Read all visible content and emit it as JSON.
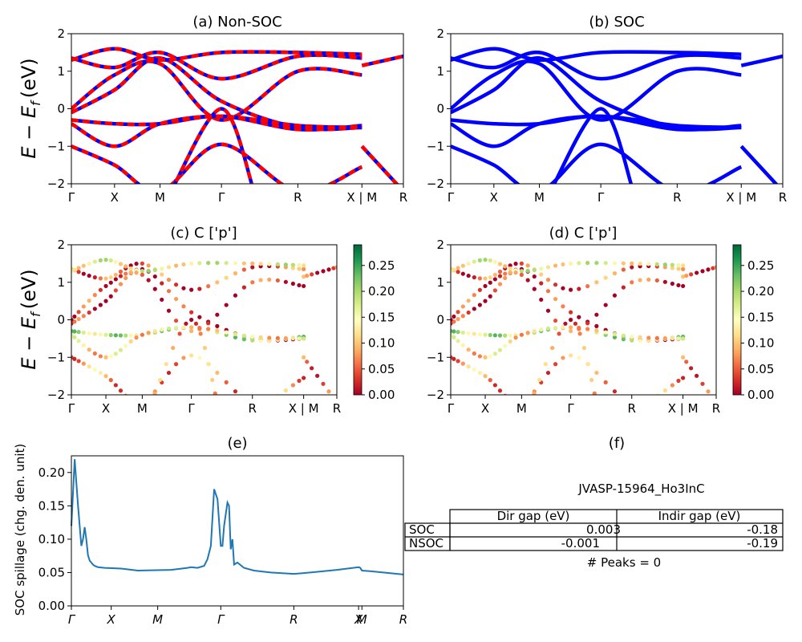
{
  "figure": {
    "material": "JVASP-15964_Ho3InC",
    "band_ylabel": "E − E",
    "band_ylabel_sub": "f",
    "band_ylabel_unit": "(eV)"
  },
  "chart_data": [
    {
      "id": "a",
      "type": "line",
      "title": "(a) Non-SOC",
      "ylim": [
        -2,
        2
      ],
      "yticks": [
        "−2",
        "−1",
        "0",
        "1",
        "2"
      ],
      "kpath_labels": [
        "Γ",
        "X",
        "M",
        "Γ",
        "R",
        "X | M",
        "R"
      ],
      "kpath_pos": [
        0,
        0.13,
        0.267,
        0.452,
        0.682,
        0.875,
        1.0
      ],
      "series_colors": [
        "#0000ff",
        "#ff0000"
      ],
      "bands": [
        [
          [
            0,
            -0.1
          ],
          [
            0.13,
            0.5
          ],
          [
            0.267,
            1.35
          ],
          [
            0.452,
            0.2
          ],
          [
            0.682,
            -0.5
          ],
          [
            0.875,
            -0.5
          ]
        ],
        [
          [
            0,
            -0.3
          ],
          [
            0.13,
            -0.4
          ],
          [
            0.267,
            -0.4
          ],
          [
            0.452,
            -0.2
          ],
          [
            0.682,
            -0.55
          ],
          [
            0.875,
            -0.45
          ]
        ],
        [
          [
            0,
            1.35
          ],
          [
            0.13,
            1.1
          ],
          [
            0.267,
            1.5
          ],
          [
            0.452,
            0.8
          ],
          [
            0.682,
            1.4
          ],
          [
            0.875,
            1.35
          ]
        ],
        [
          [
            0,
            1.3
          ],
          [
            0.13,
            1.6
          ],
          [
            0.267,
            1.3
          ],
          [
            0.452,
            1.5
          ],
          [
            0.682,
            1.5
          ],
          [
            0.875,
            1.45
          ]
        ],
        [
          [
            0,
            -1.0
          ],
          [
            0.13,
            -1.5
          ],
          [
            0.267,
            -2.2
          ],
          [
            0.452,
            -0.95
          ],
          [
            0.682,
            -2.2
          ],
          [
            0.875,
            -1.55
          ]
        ],
        [
          [
            0,
            0.0
          ],
          [
            0.13,
            0.9
          ],
          [
            0.267,
            1.2
          ],
          [
            0.452,
            -0.3
          ],
          [
            0.682,
            1.0
          ],
          [
            0.875,
            0.9
          ]
        ],
        [
          [
            0.3,
            -2.2
          ],
          [
            0.452,
            0.0
          ],
          [
            0.55,
            -2.2
          ]
        ],
        [
          [
            0,
            -0.4
          ],
          [
            0.13,
            -1.0
          ],
          [
            0.267,
            -0.4
          ],
          [
            0.452,
            -0.2
          ],
          [
            0.682,
            -0.45
          ],
          [
            0.875,
            -0.5
          ]
        ],
        [
          [
            0.875,
            1.15
          ],
          [
            1.0,
            1.4
          ]
        ],
        [
          [
            0.875,
            -1.0
          ],
          [
            1.0,
            -2.2
          ]
        ]
      ]
    },
    {
      "id": "b",
      "type": "line",
      "title": "(b) SOC",
      "ylim": [
        -2,
        2
      ],
      "yticks": [
        "−2",
        "−1",
        "0",
        "1",
        "2"
      ],
      "kpath_labels": [
        "Γ",
        "X",
        "M",
        "Γ",
        "R",
        "X | M",
        "R"
      ],
      "kpath_pos": [
        0,
        0.13,
        0.267,
        0.452,
        0.682,
        0.875,
        1.0
      ],
      "series_colors": [
        "#0000ff"
      ],
      "bands": [
        [
          [
            0,
            -0.1
          ],
          [
            0.13,
            0.5
          ],
          [
            0.267,
            1.35
          ],
          [
            0.452,
            0.2
          ],
          [
            0.682,
            -0.5
          ],
          [
            0.875,
            -0.5
          ]
        ],
        [
          [
            0,
            -0.3
          ],
          [
            0.13,
            -0.4
          ],
          [
            0.267,
            -0.4
          ],
          [
            0.452,
            -0.2
          ],
          [
            0.682,
            -0.55
          ],
          [
            0.875,
            -0.45
          ]
        ],
        [
          [
            0,
            1.35
          ],
          [
            0.13,
            1.1
          ],
          [
            0.267,
            1.5
          ],
          [
            0.452,
            0.8
          ],
          [
            0.682,
            1.4
          ],
          [
            0.875,
            1.35
          ]
        ],
        [
          [
            0,
            1.3
          ],
          [
            0.13,
            1.6
          ],
          [
            0.267,
            1.3
          ],
          [
            0.452,
            1.5
          ],
          [
            0.682,
            1.5
          ],
          [
            0.875,
            1.45
          ]
        ],
        [
          [
            0,
            -1.0
          ],
          [
            0.13,
            -1.5
          ],
          [
            0.267,
            -2.2
          ],
          [
            0.452,
            -0.95
          ],
          [
            0.682,
            -2.2
          ],
          [
            0.875,
            -1.55
          ]
        ],
        [
          [
            0,
            0.0
          ],
          [
            0.13,
            0.9
          ],
          [
            0.267,
            1.2
          ],
          [
            0.452,
            -0.3
          ],
          [
            0.682,
            1.0
          ],
          [
            0.875,
            0.9
          ]
        ],
        [
          [
            0.3,
            -2.2
          ],
          [
            0.452,
            0.0
          ],
          [
            0.55,
            -2.2
          ]
        ],
        [
          [
            0,
            -0.4
          ],
          [
            0.13,
            -1.0
          ],
          [
            0.267,
            -0.4
          ],
          [
            0.452,
            -0.2
          ],
          [
            0.682,
            -0.45
          ],
          [
            0.875,
            -0.5
          ]
        ],
        [
          [
            0.875,
            1.15
          ],
          [
            1.0,
            1.4
          ]
        ],
        [
          [
            0.875,
            -1.0
          ],
          [
            1.0,
            -2.2
          ]
        ]
      ]
    },
    {
      "id": "c",
      "type": "scatter",
      "title": "(c)  C ['p']",
      "ylim": [
        -2,
        2
      ],
      "yticks": [
        "−2",
        "−1",
        "0",
        "1",
        "2"
      ],
      "kpath_labels": [
        "Γ",
        "X",
        "M",
        "Γ",
        "R",
        "X | M",
        "R"
      ],
      "kpath_pos": [
        0,
        0.13,
        0.267,
        0.452,
        0.682,
        0.875,
        1.0
      ],
      "colorbar": {
        "min": 0.0,
        "max": 0.29,
        "ticks": [
          "0.00",
          "0.05",
          "0.10",
          "0.15",
          "0.20",
          "0.25"
        ],
        "tick_values": [
          0,
          0.05,
          0.1,
          0.15,
          0.2,
          0.25
        ],
        "colormap": "RdYlGn"
      },
      "band_weights": [
        0.02,
        0.18,
        0.05,
        0.15,
        0.08,
        0.03,
        0.06,
        0.12,
        0.04,
        0.07
      ]
    },
    {
      "id": "d",
      "type": "scatter",
      "title": "(d) C ['p']",
      "ylim": [
        -2,
        2
      ],
      "yticks": [
        "−2",
        "−1",
        "0",
        "1",
        "2"
      ],
      "kpath_labels": [
        "Γ",
        "X",
        "M",
        "Γ",
        "R",
        "X | M",
        "R"
      ],
      "kpath_pos": [
        0,
        0.13,
        0.267,
        0.452,
        0.682,
        0.875,
        1.0
      ],
      "colorbar": {
        "min": 0.0,
        "max": 0.29,
        "ticks": [
          "0.00",
          "0.05",
          "0.10",
          "0.15",
          "0.20",
          "0.25"
        ],
        "tick_values": [
          0,
          0.05,
          0.1,
          0.15,
          0.2,
          0.25
        ],
        "colormap": "RdYlGn"
      },
      "band_weights": [
        0.02,
        0.18,
        0.05,
        0.15,
        0.08,
        0.03,
        0.06,
        0.12,
        0.04,
        0.07
      ]
    },
    {
      "id": "e",
      "type": "line",
      "title": "(e)",
      "ylabel": "SOC spillage (chg. den. unit)",
      "ylim": [
        0,
        0.225
      ],
      "yticks": [
        0.0,
        0.05,
        0.1,
        0.15,
        0.2
      ],
      "ytick_labels": [
        "0.00",
        "0.05",
        "0.10",
        "0.15",
        "0.20"
      ],
      "xticks": [
        "Γ",
        "X",
        "M",
        "Γ",
        "R",
        "X",
        "M",
        "R"
      ],
      "xtick_pos": [
        0,
        0.12,
        0.26,
        0.45,
        0.67,
        0.865,
        0.875,
        1.0
      ],
      "color": "#1f77b4",
      "x": [
        0,
        0.01,
        0.02,
        0.03,
        0.035,
        0.04,
        0.045,
        0.05,
        0.055,
        0.06,
        0.065,
        0.07,
        0.08,
        0.1,
        0.15,
        0.2,
        0.3,
        0.35,
        0.36,
        0.38,
        0.4,
        0.41,
        0.42,
        0.43,
        0.44,
        0.45,
        0.455,
        0.46,
        0.47,
        0.475,
        0.48,
        0.485,
        0.49,
        0.5,
        0.52,
        0.55,
        0.6,
        0.67,
        0.72,
        0.8,
        0.865,
        0.87,
        0.875,
        0.9,
        1.0
      ],
      "y": [
        0.12,
        0.22,
        0.15,
        0.09,
        0.1,
        0.118,
        0.1,
        0.076,
        0.068,
        0.065,
        0.062,
        0.06,
        0.058,
        0.057,
        0.056,
        0.053,
        0.054,
        0.057,
        0.058,
        0.057,
        0.06,
        0.07,
        0.09,
        0.175,
        0.16,
        0.09,
        0.09,
        0.12,
        0.155,
        0.15,
        0.085,
        0.1,
        0.062,
        0.065,
        0.057,
        0.053,
        0.05,
        0.048,
        0.05,
        0.054,
        0.058,
        0.057,
        0.053,
        0.052,
        0.047
      ]
    }
  ],
  "panel_f": {
    "title": "(f)",
    "material": "JVASP-15964_Ho3InC",
    "table": {
      "headers": [
        "Dir gap (eV)",
        "Indir gap (eV)"
      ],
      "rows": [
        {
          "label": "SOC",
          "dir": "0.003",
          "indir": "-0.18"
        },
        {
          "label": "NSOC",
          "dir": "-0.001",
          "indir": "-0.19"
        }
      ]
    },
    "peaks": "# Peaks = 0"
  }
}
